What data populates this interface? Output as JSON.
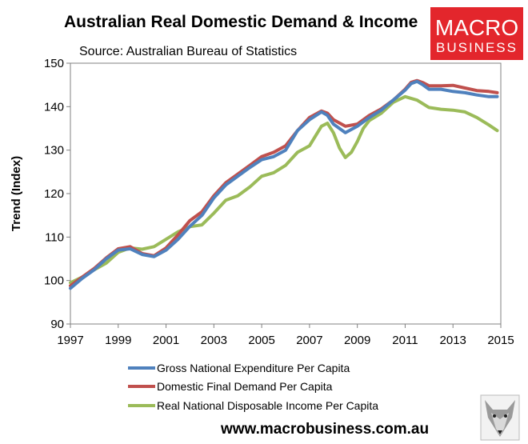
{
  "title": "Australian Real Domestic Demand & Income",
  "subtitle": "Source: Australian Bureau of Statistics",
  "logo": {
    "line1": "MACRO",
    "line2": "BUSINESS",
    "color": "#e3262c"
  },
  "footer_url": "www.macrobusiness.com.au",
  "chart_data": {
    "type": "line",
    "title": "Australian Real Domestic Demand & Income",
    "subtitle": "Source: Australian Bureau of Statistics",
    "xlabel": "",
    "ylabel": "Trend (Index)",
    "xlim": [
      1997,
      2015
    ],
    "ylim": [
      90,
      150
    ],
    "x_ticks": [
      1997,
      1999,
      2001,
      2003,
      2005,
      2007,
      2009,
      2011,
      2013,
      2015
    ],
    "y_ticks": [
      90,
      100,
      110,
      120,
      130,
      140,
      150
    ],
    "grid": false,
    "legend_position": "bottom",
    "series": [
      {
        "name": "Gross National Expenditure Per Capita",
        "color": "#4f81bd",
        "points": [
          [
            1997,
            98.2
          ],
          [
            1997.5,
            100.5
          ],
          [
            1998,
            102.5
          ],
          [
            1998.5,
            105
          ],
          [
            1999,
            107
          ],
          [
            1999.5,
            107.3
          ],
          [
            2000,
            106
          ],
          [
            2000.5,
            105.5
          ],
          [
            2001,
            107
          ],
          [
            2001.5,
            109.5
          ],
          [
            2002,
            112.5
          ],
          [
            2002.5,
            115
          ],
          [
            2003,
            119
          ],
          [
            2003.5,
            122
          ],
          [
            2004,
            124
          ],
          [
            2004.5,
            126
          ],
          [
            2005,
            127.8
          ],
          [
            2005.5,
            128.5
          ],
          [
            2006,
            130
          ],
          [
            2006.5,
            134.5
          ],
          [
            2007,
            137
          ],
          [
            2007.5,
            138.8
          ],
          [
            2007.75,
            138
          ],
          [
            2008,
            136
          ],
          [
            2008.5,
            134
          ],
          [
            2009,
            135.5
          ],
          [
            2009.5,
            137.5
          ],
          [
            2010,
            139.2
          ],
          [
            2010.5,
            141.5
          ],
          [
            2011,
            143.8
          ],
          [
            2011.25,
            145.3
          ],
          [
            2011.5,
            145.8
          ],
          [
            2011.75,
            145
          ],
          [
            2012,
            144
          ],
          [
            2012.5,
            144
          ],
          [
            2013,
            143.5
          ],
          [
            2013.5,
            143.2
          ],
          [
            2014,
            142.7
          ],
          [
            2014.5,
            142.3
          ],
          [
            2014.85,
            142.3
          ]
        ]
      },
      {
        "name": "Domestic Final Demand Per Capita",
        "color": "#c0504d",
        "points": [
          [
            1997,
            98.8
          ],
          [
            1997.5,
            100.8
          ],
          [
            1998,
            102.8
          ],
          [
            1998.5,
            105.2
          ],
          [
            1999,
            107.3
          ],
          [
            1999.5,
            107.8
          ],
          [
            2000,
            106.2
          ],
          [
            2000.5,
            105.7
          ],
          [
            2001,
            107.5
          ],
          [
            2001.5,
            110.5
          ],
          [
            2002,
            113.8
          ],
          [
            2002.5,
            115.8
          ],
          [
            2003,
            119.5
          ],
          [
            2003.5,
            122.5
          ],
          [
            2004,
            124.5
          ],
          [
            2004.5,
            126.5
          ],
          [
            2005,
            128.5
          ],
          [
            2005.5,
            129.5
          ],
          [
            2006,
            131
          ],
          [
            2006.5,
            134.5
          ],
          [
            2007,
            137.5
          ],
          [
            2007.5,
            139
          ],
          [
            2007.75,
            138.5
          ],
          [
            2008,
            137
          ],
          [
            2008.5,
            135.5
          ],
          [
            2009,
            136
          ],
          [
            2009.5,
            138
          ],
          [
            2010,
            139.5
          ],
          [
            2010.5,
            141.5
          ],
          [
            2011,
            144
          ],
          [
            2011.25,
            145.6
          ],
          [
            2011.5,
            146
          ],
          [
            2011.75,
            145.5
          ],
          [
            2012,
            144.8
          ],
          [
            2012.5,
            144.8
          ],
          [
            2013,
            144.9
          ],
          [
            2013.5,
            144.3
          ],
          [
            2014,
            143.7
          ],
          [
            2014.5,
            143.5
          ],
          [
            2014.85,
            143.2
          ]
        ]
      },
      {
        "name": "Real National Disposable Income Per Capita",
        "color": "#9bbb59",
        "points": [
          [
            1997,
            99.5
          ],
          [
            1997.5,
            100.8
          ],
          [
            1998,
            102.5
          ],
          [
            1998.5,
            104
          ],
          [
            1999,
            106.5
          ],
          [
            1999.5,
            107.5
          ],
          [
            2000,
            107.2
          ],
          [
            2000.5,
            107.8
          ],
          [
            2001,
            109.5
          ],
          [
            2001.5,
            111.2
          ],
          [
            2002,
            112.4
          ],
          [
            2002.5,
            112.8
          ],
          [
            2003,
            115.5
          ],
          [
            2003.5,
            118.5
          ],
          [
            2004,
            119.5
          ],
          [
            2004.5,
            121.5
          ],
          [
            2005,
            124
          ],
          [
            2005.5,
            124.8
          ],
          [
            2006,
            126.5
          ],
          [
            2006.5,
            129.5
          ],
          [
            2007,
            131
          ],
          [
            2007.5,
            135.5
          ],
          [
            2007.75,
            136.2
          ],
          [
            2008,
            134
          ],
          [
            2008.25,
            130.5
          ],
          [
            2008.5,
            128.3
          ],
          [
            2008.75,
            129.5
          ],
          [
            2009,
            132
          ],
          [
            2009.25,
            135
          ],
          [
            2009.5,
            136.8
          ],
          [
            2010,
            138.5
          ],
          [
            2010.5,
            141
          ],
          [
            2011,
            142.3
          ],
          [
            2011.5,
            141.5
          ],
          [
            2012,
            139.8
          ],
          [
            2012.5,
            139.4
          ],
          [
            2013,
            139.2
          ],
          [
            2013.5,
            138.8
          ],
          [
            2014,
            137.5
          ],
          [
            2014.5,
            135.8
          ],
          [
            2014.85,
            134.5
          ]
        ]
      }
    ]
  }
}
